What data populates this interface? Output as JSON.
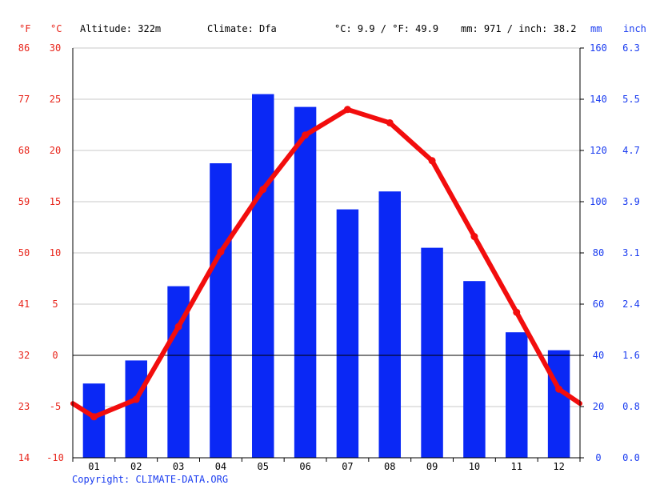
{
  "header": {
    "unit_f": "°F",
    "unit_c": "°C",
    "altitude": "Altitude: 322m",
    "climate": "Climate: Dfa",
    "avg_temp": "°C: 9.9 / °F: 49.9",
    "precip_total": "mm: 971 / inch: 38.2",
    "unit_mm": "mm",
    "unit_inch": "inch"
  },
  "footer": {
    "copyright": "Copyright: CLIMATE-DATA.ORG"
  },
  "colors": {
    "temp_line": "#f20d0d",
    "precip_bar": "#0a28f5",
    "grid": "#c8c8c8",
    "zero_line": "#000000",
    "temp_axis": "#e8251b",
    "precip_axis": "#1a3cf0"
  },
  "chart_data": {
    "type": "bar",
    "categories": [
      "01",
      "02",
      "03",
      "04",
      "05",
      "06",
      "07",
      "08",
      "09",
      "10",
      "11",
      "12"
    ],
    "series": [
      {
        "values": [
          29,
          38,
          67,
          115,
          142,
          137,
          97,
          104,
          82,
          69,
          49,
          42
        ],
        "axis": "right",
        "type": "bar"
      },
      {
        "values": [
          -6.0,
          -4.3,
          2.8,
          10.1,
          16.2,
          21.5,
          24.0,
          22.7,
          19.0,
          11.6,
          4.2,
          -3.3
        ],
        "axis": "left",
        "type": "line"
      }
    ],
    "temp_start": -4.7,
    "temp_end": -4.7,
    "y_left_c": {
      "ticks": [
        30,
        25,
        20,
        15,
        10,
        5,
        0,
        -5,
        -10
      ],
      "range": [
        -10,
        30
      ]
    },
    "y_left_f": {
      "ticks": [
        86,
        77,
        68,
        59,
        50,
        41,
        32,
        23,
        14
      ]
    },
    "y_right_mm": {
      "ticks": [
        160,
        140,
        120,
        100,
        80,
        60,
        40,
        20,
        0
      ],
      "range": [
        0,
        160
      ]
    },
    "y_right_inch": {
      "ticks": [
        "6.3",
        "5.5",
        "4.7",
        "3.9",
        "3.1",
        "2.4",
        "1.6",
        "0.8",
        "0.0"
      ]
    },
    "grid": true,
    "zero_line_c": 0
  }
}
